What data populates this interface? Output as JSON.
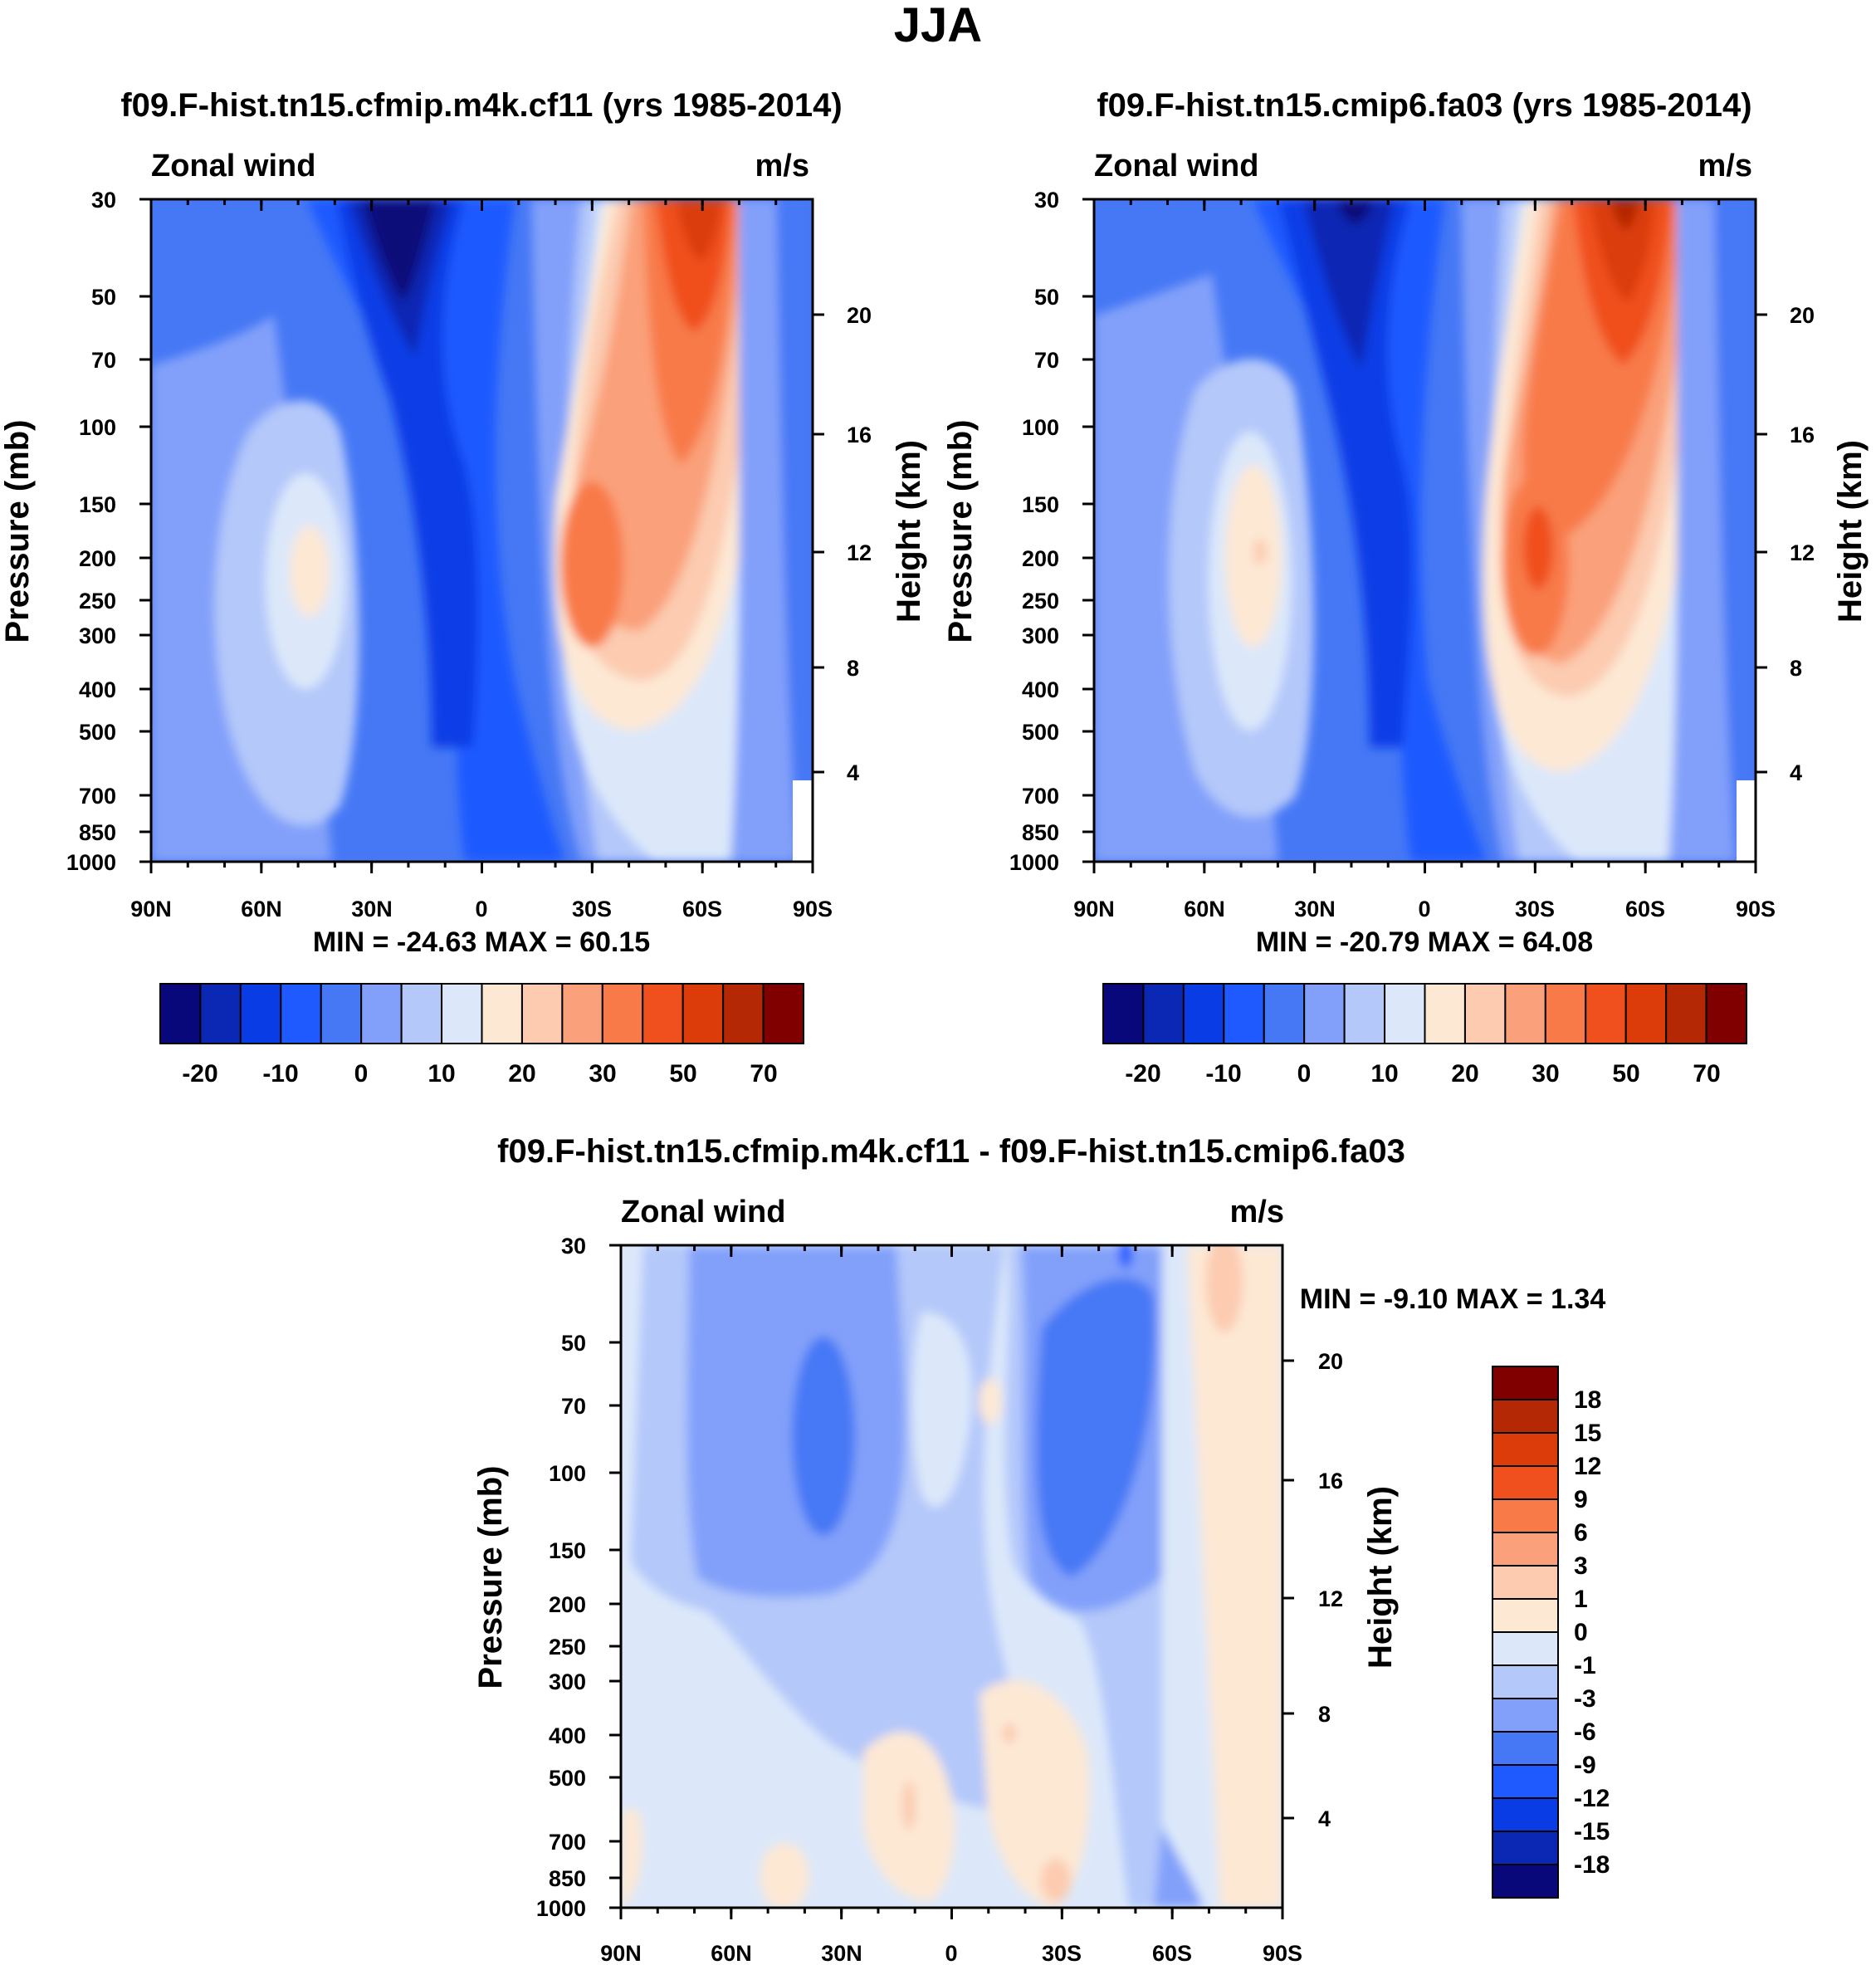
{
  "page_title": "JJA",
  "chart_data": [
    {
      "type": "heatmap",
      "title": "f09.F-hist.tn15.cfmip.m4k.cf11 (yrs 1985-2014)",
      "left_label": "Zonal wind",
      "right_label": "m/s",
      "ylabel": "Pressure (mb)",
      "y2label": "Height (km)",
      "x_ticks": [
        "90N",
        "60N",
        "30N",
        "0",
        "30S",
        "60S",
        "90S"
      ],
      "y_ticks": [
        "30",
        "50",
        "70",
        "100",
        "150",
        "200",
        "250",
        "300",
        "400",
        "500",
        "700",
        "850",
        "1000"
      ],
      "y2_ticks": [
        "20",
        "16",
        "12",
        "8",
        "4"
      ],
      "stats": "MIN = -24.63  MAX =  60.15",
      "colorbar_labels": [
        "-20",
        "-10",
        "0",
        "10",
        "20",
        "30",
        "50",
        "70"
      ],
      "ylim": [
        1000,
        30
      ]
    },
    {
      "type": "heatmap",
      "title": "f09.F-hist.tn15.cmip6.fa03 (yrs 1985-2014)",
      "left_label": "Zonal wind",
      "right_label": "m/s",
      "ylabel": "Pressure (mb)",
      "y2label": "Height (km)",
      "x_ticks": [
        "90N",
        "60N",
        "30N",
        "0",
        "30S",
        "60S",
        "90S"
      ],
      "y_ticks": [
        "30",
        "50",
        "70",
        "100",
        "150",
        "200",
        "250",
        "300",
        "400",
        "500",
        "700",
        "850",
        "1000"
      ],
      "y2_ticks": [
        "20",
        "16",
        "12",
        "8",
        "4"
      ],
      "stats": "MIN = -20.79  MAX =  64.08",
      "colorbar_labels": [
        "-20",
        "-10",
        "0",
        "10",
        "20",
        "30",
        "50",
        "70"
      ],
      "ylim": [
        1000,
        30
      ]
    },
    {
      "type": "heatmap",
      "title": "f09.F-hist.tn15.cfmip.m4k.cf11 - f09.F-hist.tn15.cmip6.fa03",
      "left_label": "Zonal wind",
      "right_label": "m/s",
      "ylabel": "Pressure (mb)",
      "y2label": "Height (km)",
      "x_ticks": [
        "90N",
        "60N",
        "30N",
        "0",
        "30S",
        "60S",
        "90S"
      ],
      "y_ticks": [
        "30",
        "50",
        "70",
        "100",
        "150",
        "200",
        "250",
        "300",
        "400",
        "500",
        "700",
        "850",
        "1000"
      ],
      "y2_ticks": [
        "20",
        "16",
        "12",
        "8",
        "4"
      ],
      "stats": "MIN =  -9.10  MAX =   1.34",
      "colorbar_labels": [
        "18",
        "15",
        "12",
        "9",
        "6",
        "3",
        "1",
        "0",
        "-1",
        "-3",
        "-6",
        "-9",
        "-12",
        "-15",
        "-18"
      ],
      "ylim": [
        1000,
        30
      ]
    }
  ],
  "colors": {
    "wind_scale": [
      "#08087a",
      "#0a28b4",
      "#0a3ce6",
      "#1e5aff",
      "#4678f5",
      "#82a0fa",
      "#b4c8fa",
      "#dce8fa",
      "#fde8d4",
      "#fccbb0",
      "#faa07a",
      "#f87a48",
      "#f0501e",
      "#dc3c0a",
      "#b42805",
      "#800000"
    ],
    "diff_scale": [
      "#800000",
      "#b42805",
      "#dc3c0a",
      "#f0501e",
      "#f87a48",
      "#faa07a",
      "#fccbb0",
      "#fde8d4",
      "#dce8fa",
      "#b4c8fa",
      "#82a0fa",
      "#4678f5",
      "#1e5aff",
      "#0a3ce6",
      "#0a28b4",
      "#08087a"
    ]
  }
}
